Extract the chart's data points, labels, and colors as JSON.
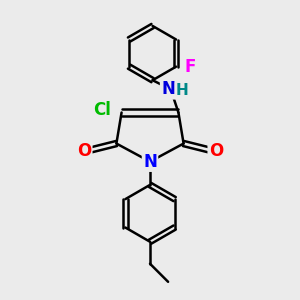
{
  "bg_color": "#ebebeb",
  "bond_color": "#000000",
  "bond_width": 1.8,
  "atom_colors": {
    "N_ring": "#0000ff",
    "N_amino": "#0000dd",
    "O": "#ff0000",
    "Cl": "#00bb00",
    "F": "#ff00ff",
    "C": "#000000",
    "H": "#008888"
  },
  "figsize": [
    3.0,
    3.0
  ],
  "dpi": 100
}
